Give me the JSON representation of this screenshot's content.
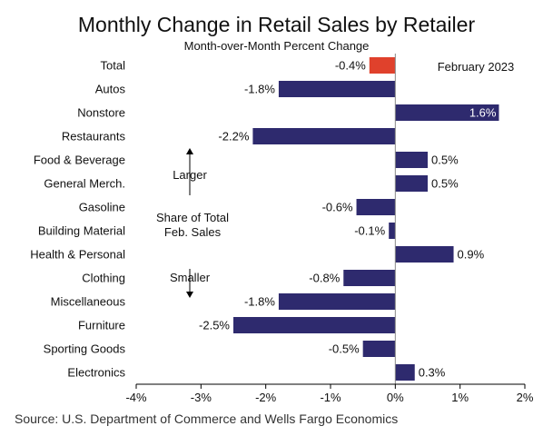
{
  "chart_data": {
    "type": "bar",
    "orientation": "horizontal",
    "title": "Monthly Change in Retail Sales by Retailer",
    "subtitle": "Month-over-Month Percent Change",
    "period_label": "February 2023",
    "categories": [
      "Total",
      "Autos",
      "Nonstore",
      "Restaurants",
      "Food & Beverage",
      "General Merch.",
      "Gasoline",
      "Building Material",
      "Health & Personal",
      "Clothing",
      "Miscellaneous",
      "Furniture",
      "Sporting Goods",
      "Electronics"
    ],
    "values": [
      -0.4,
      -1.8,
      1.6,
      -2.2,
      0.5,
      0.5,
      -0.6,
      -0.1,
      0.9,
      -0.8,
      -1.8,
      -2.5,
      -0.5,
      0.3
    ],
    "value_labels": [
      "-0.4%",
      "-1.8%",
      "1.6%",
      "-2.2%",
      "0.5%",
      "0.5%",
      "-0.6%",
      "-0.1%",
      "0.9%",
      "-0.8%",
      "-1.8%",
      "-2.5%",
      "-0.5%",
      "0.3%"
    ],
    "xlim": [
      -4,
      2
    ],
    "x_ticks": [
      -4,
      -3,
      -2,
      -1,
      0,
      1,
      2
    ],
    "x_tick_labels": [
      "-4%",
      "-3%",
      "-2%",
      "-1%",
      "0%",
      "1%",
      "2%"
    ],
    "colors": {
      "bar": "#2e2a6e",
      "highlight": "#e0412c"
    },
    "highlight_category": "Total",
    "annotations": {
      "larger": "Larger",
      "share_line1": "Share of Total",
      "share_line2": "Feb. Sales",
      "smaller": "Smaller"
    },
    "grid": false,
    "source": "Source: U.S. Department of Commerce and Wells Fargo Economics"
  }
}
